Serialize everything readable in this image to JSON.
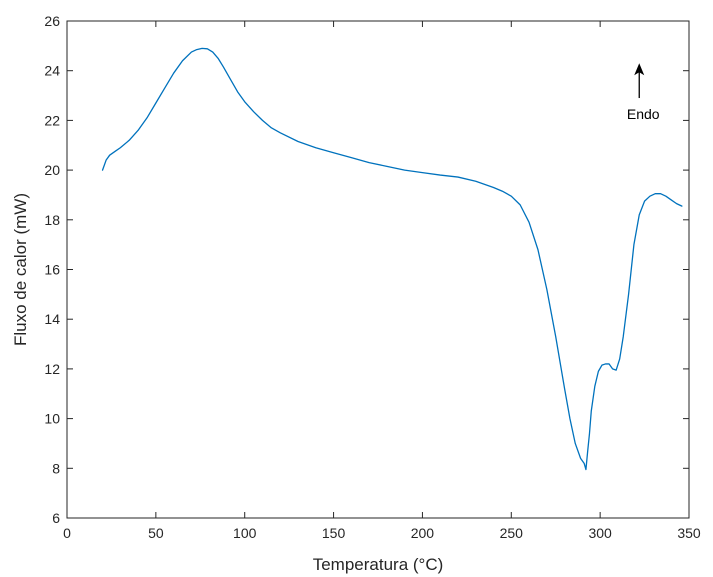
{
  "chart_data": {
    "type": "line",
    "title": "",
    "xlabel": "Temperatura (°C)",
    "ylabel": "Fluxo de calor (mW)",
    "xlim": [
      0,
      350
    ],
    "ylim": [
      6,
      26
    ],
    "xticks": [
      0,
      50,
      100,
      150,
      200,
      250,
      300,
      350
    ],
    "yticks": [
      6,
      8,
      10,
      12,
      14,
      16,
      18,
      20,
      22,
      24,
      26
    ],
    "grid": false,
    "legend": "none",
    "colors": {
      "line": "#0072bd",
      "axes": "#262626",
      "annotation": "#000000"
    },
    "series": [
      {
        "x": [
          20,
          22,
          24,
          27,
          30,
          35,
          40,
          45,
          50,
          55,
          60,
          65,
          70,
          73,
          76,
          79,
          82,
          85,
          88,
          92,
          96,
          100,
          105,
          110,
          115,
          120,
          130,
          140,
          150,
          160,
          170,
          180,
          190,
          200,
          210,
          220,
          230,
          240,
          245,
          250,
          255,
          260,
          265,
          270,
          275,
          280,
          283,
          286,
          289,
          291,
          292,
          293,
          294,
          295,
          297,
          299,
          301,
          303,
          305,
          307,
          309,
          311,
          313,
          316,
          319,
          322,
          325,
          328,
          331,
          334,
          337,
          340,
          343,
          346
        ],
        "values": [
          20.0,
          20.4,
          20.6,
          20.75,
          20.9,
          21.2,
          21.6,
          22.1,
          22.7,
          23.3,
          23.9,
          24.4,
          24.75,
          24.85,
          24.9,
          24.88,
          24.75,
          24.5,
          24.15,
          23.65,
          23.15,
          22.75,
          22.35,
          22.0,
          21.7,
          21.5,
          21.15,
          20.9,
          20.7,
          20.5,
          20.3,
          20.15,
          20.0,
          19.9,
          19.8,
          19.72,
          19.55,
          19.3,
          19.15,
          18.95,
          18.6,
          17.9,
          16.8,
          15.2,
          13.3,
          11.2,
          10.0,
          9.0,
          8.4,
          8.2,
          7.95,
          8.7,
          9.4,
          10.3,
          11.3,
          11.9,
          12.15,
          12.2,
          12.2,
          12.0,
          11.95,
          12.4,
          13.3,
          15.0,
          17.0,
          18.2,
          18.75,
          18.95,
          19.05,
          19.05,
          18.95,
          18.8,
          18.65,
          18.55
        ]
      }
    ],
    "annotations": [
      {
        "text": "Endo",
        "arrow_x": 322,
        "arrow_from_y": 22.9,
        "arrow_to_y": 24.3,
        "text_x": 322,
        "text_y": 22.25
      }
    ]
  }
}
